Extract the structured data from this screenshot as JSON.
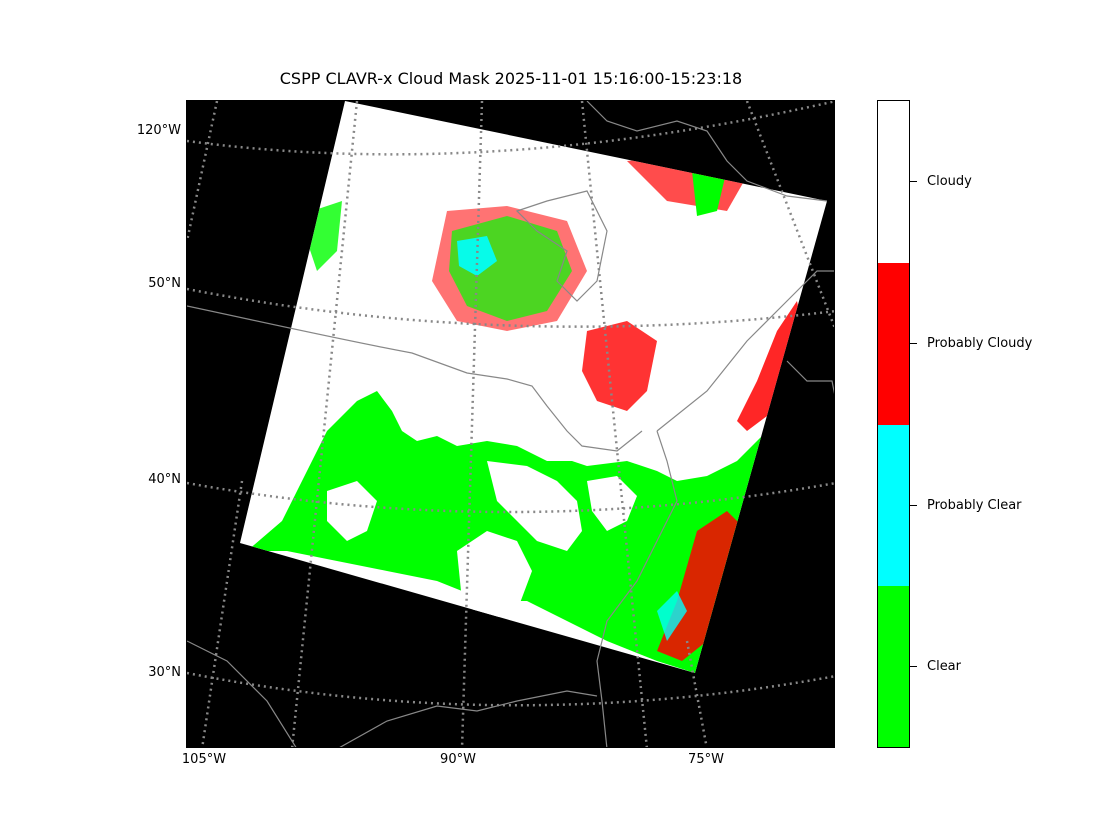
{
  "title": "CSPP CLAVR-x Cloud Mask 2025-11-01 15:16:00-15:23:18",
  "latitude_labels": [
    "120°W",
    "50°N",
    "40°N",
    "30°N"
  ],
  "longitude_labels": [
    "105°W",
    "90°W",
    "75°W"
  ],
  "colorbar": {
    "classes": [
      {
        "label": "Cloudy",
        "color": "#ffffff"
      },
      {
        "label": "Probably Cloudy",
        "color": "#ff0000"
      },
      {
        "label": "Probably Clear",
        "color": "#00ffff"
      },
      {
        "label": "Clear",
        "color": "#00ff00"
      }
    ]
  },
  "colors": {
    "background": "#000000",
    "gridline": "#888888",
    "coastline": "#888888"
  }
}
